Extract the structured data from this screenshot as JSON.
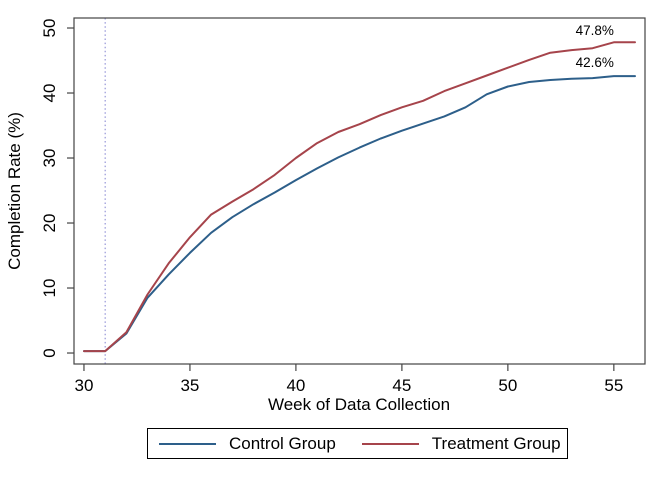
{
  "figure": {
    "y_axis_label": "Completion Rate (%)",
    "x_axis_label": "Week of Data Collection",
    "treatment_end_label": "47.8%",
    "control_end_label": "42.6%"
  },
  "legend": {
    "items": [
      {
        "label": "Control Group",
        "color": "#2d5f8a"
      },
      {
        "label": "Treatment Group",
        "color": "#a6444b"
      }
    ]
  },
  "colors": {
    "control": "#2d5f8a",
    "treatment": "#a6444b",
    "reference_line": "#8080d0",
    "axis": "#444444",
    "text": "#000000",
    "background": "#ffffff"
  },
  "chart_data": {
    "type": "line",
    "title": "",
    "xlabel": "Week of Data Collection",
    "ylabel": "Completion Rate (%)",
    "grid": false,
    "legend_position": "bottom-center",
    "x_ticks": [
      30,
      35,
      40,
      45,
      50,
      55
    ],
    "y_ticks": [
      0,
      10,
      20,
      30,
      40,
      50
    ],
    "xlim": [
      29.53,
      56.47
    ],
    "ylim": [
      -1.69,
      51.54
    ],
    "reference_line_x": 31,
    "x": [
      30,
      31,
      32,
      33,
      34,
      35,
      36,
      37,
      38,
      39,
      40,
      41,
      42,
      43,
      44,
      45,
      46,
      47,
      48,
      49,
      50,
      51,
      52,
      53,
      54,
      55,
      56
    ],
    "series": [
      {
        "name": "Control Group",
        "color": "#2d5f8a",
        "values": [
          0.3,
          0.3,
          3.0,
          8.5,
          12.1,
          15.4,
          18.5,
          20.9,
          22.9,
          24.7,
          26.6,
          28.4,
          30.1,
          31.6,
          33.0,
          34.2,
          35.3,
          36.4,
          37.8,
          39.8,
          41.0,
          41.7,
          42.0,
          42.2,
          42.3,
          42.6,
          42.6
        ]
      },
      {
        "name": "Treatment Group",
        "color": "#a6444b",
        "values": [
          0.3,
          0.3,
          3.2,
          9.0,
          13.8,
          17.8,
          21.3,
          23.3,
          25.2,
          27.4,
          30.0,
          32.3,
          34.0,
          35.2,
          36.6,
          37.8,
          38.8,
          40.3,
          41.5,
          42.7,
          43.9,
          45.1,
          46.2,
          46.6,
          46.9,
          47.8,
          47.8
        ]
      }
    ],
    "annotations": [
      {
        "text": "47.8%",
        "x": 54.1,
        "y": 48.9,
        "series": "Treatment Group"
      },
      {
        "text": "42.6%",
        "x": 54.1,
        "y": 44.0,
        "series": "Control Group"
      }
    ]
  }
}
